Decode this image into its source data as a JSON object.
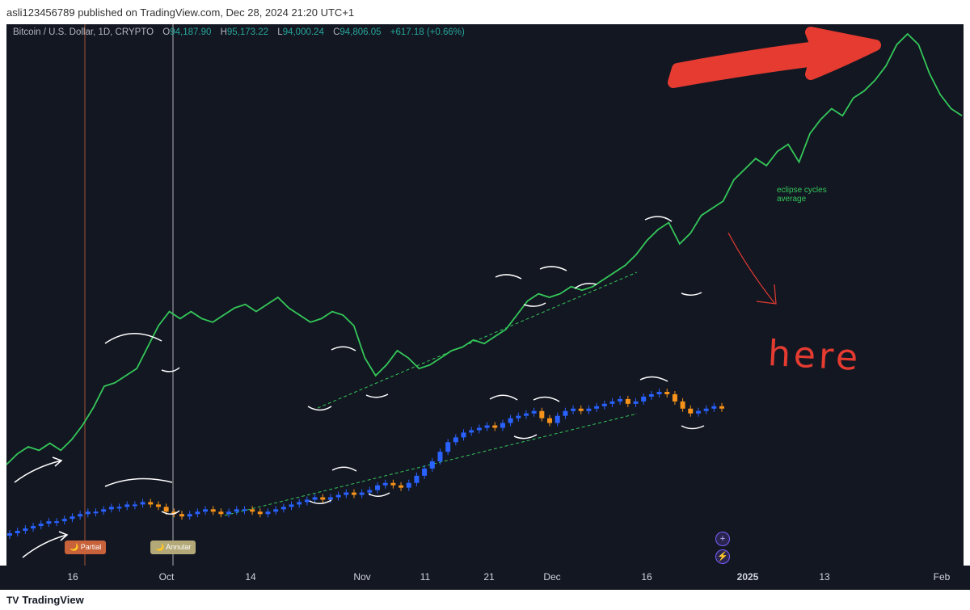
{
  "header": {
    "published_text": "asli123456789 published on TradingView.com, Dec 28, 2024 21:20 UTC+1"
  },
  "ohlc": {
    "symbol": "Bitcoin / U.S. Dollar, 1D, CRYPTO",
    "o_label": "O",
    "o_value": "94,187.90",
    "h_label": "H",
    "h_value": "95,173.22",
    "l_label": "L",
    "l_value": "94,000.24",
    "c_label": "C",
    "c_value": "94,806.05",
    "change": "+617.18 (+0.66%)"
  },
  "annotations": {
    "eclipse_line1": "eclipse cycles",
    "eclipse_line2": "average",
    "here": "here"
  },
  "events": {
    "partial": "Partial",
    "annular": "Annular"
  },
  "footer": {
    "logo_text": "TradingView"
  },
  "colors": {
    "background": "#131722",
    "bull": "#2962ff",
    "bear": "#f7931a",
    "cycle_line": "#34c759",
    "annotation_red": "#e53b30",
    "trend_dashed": "#34c759"
  },
  "chart_data": {
    "type": "line",
    "x_ticks": [
      "16",
      "Oct",
      "14",
      "Nov",
      "11",
      "21",
      "Dec",
      "16",
      "2025",
      "13",
      "Feb"
    ],
    "series": [
      {
        "name": "eclipse cycles average",
        "kind": "line",
        "values": [
          0,
          3,
          5,
          4,
          6,
          4,
          7,
          11,
          16,
          22,
          23,
          25,
          27,
          33,
          39,
          43,
          41,
          43,
          41,
          40,
          42,
          44,
          45,
          43,
          45,
          47,
          44,
          42,
          40,
          41,
          43,
          42,
          39,
          30,
          25,
          28,
          32,
          30,
          27,
          28,
          30,
          32,
          33,
          35,
          34,
          36,
          38,
          42,
          46,
          48,
          47,
          48,
          50,
          49,
          50,
          52,
          54,
          56,
          59,
          63,
          66,
          68,
          62,
          65,
          70,
          72,
          74,
          80,
          83,
          86,
          84,
          88,
          90,
          85,
          93,
          97,
          100,
          98,
          103,
          105,
          108,
          112,
          118,
          121,
          118,
          110,
          104,
          100,
          98
        ]
      },
      {
        "name": "BTC/USD",
        "kind": "candlestick",
        "values": [
          0,
          1,
          2,
          3,
          4,
          5,
          5,
          6,
          7,
          8,
          9,
          9,
          10,
          11,
          11,
          12,
          12,
          13,
          12,
          11,
          9,
          8,
          7,
          8,
          9,
          10,
          9,
          8,
          9,
          10,
          10,
          9,
          8,
          9,
          10,
          11,
          12,
          13,
          14,
          15,
          14,
          15,
          16,
          17,
          16,
          17,
          18,
          20,
          21,
          20,
          19,
          21,
          24,
          27,
          30,
          34,
          38,
          40,
          42,
          43,
          44,
          45,
          44,
          46,
          48,
          49,
          50,
          51,
          48,
          46,
          49,
          51,
          52,
          51,
          52,
          53,
          54,
          55,
          56,
          54,
          55,
          57,
          58,
          59,
          58,
          55,
          52,
          50,
          51,
          52,
          53,
          52
        ]
      }
    ],
    "events": [
      "Partial",
      "Annular"
    ]
  }
}
